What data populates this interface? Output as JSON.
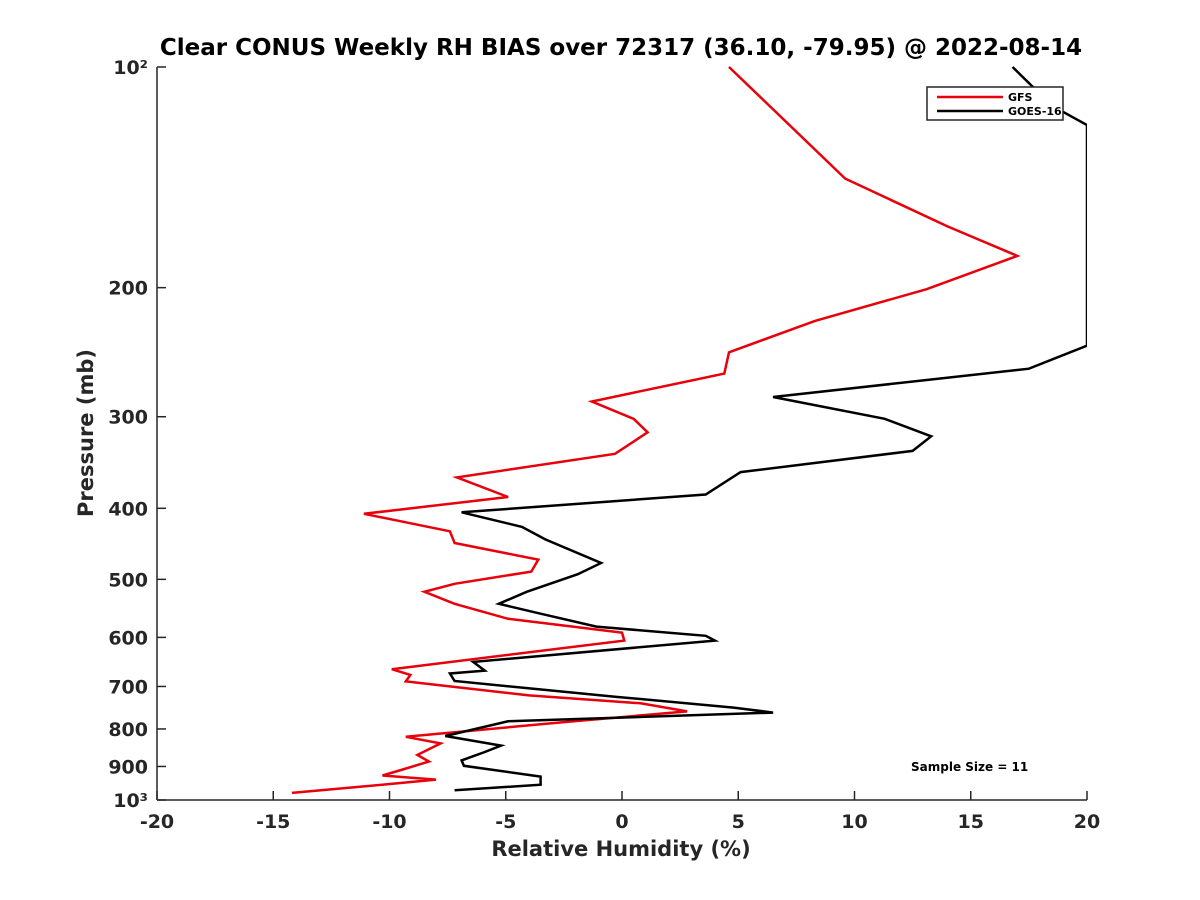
{
  "chart_data": {
    "type": "line",
    "title": "Clear CONUS Weekly RH BIAS over 72317 (36.10, -79.95) @ 2022-08-14",
    "xlabel": "Relative Humidity (%)",
    "ylabel": "Pressure (mb)",
    "xlim": [
      -20,
      20
    ],
    "ylim": [
      100,
      1000
    ],
    "y_scale": "log",
    "y_reversed": true,
    "x_ticks": [
      -20,
      -15,
      -10,
      -5,
      0,
      5,
      10,
      15,
      20
    ],
    "x_tick_labels": [
      "-20",
      "-15",
      "-10",
      "-5",
      "0",
      "5",
      "10",
      "15",
      "20"
    ],
    "y_ticks": [
      100,
      200,
      300,
      400,
      500,
      600,
      700,
      800,
      900,
      1000
    ],
    "y_tick_labels": [
      "10²",
      "200",
      "300",
      "400",
      "500",
      "600",
      "700",
      "800",
      "900",
      "10³"
    ],
    "grid": false,
    "legend_position": "top-right",
    "annotation": "Sample Size = 11",
    "series": [
      {
        "name": "GFS",
        "color": "#e8000b",
        "points": [
          [
            4.6,
            100
          ],
          [
            9.6,
            142
          ],
          [
            14,
            165
          ],
          [
            17,
            181
          ],
          [
            13.1,
            201
          ],
          [
            8.3,
            222
          ],
          [
            4.6,
            245
          ],
          [
            4.4,
            262
          ],
          [
            -1.3,
            286
          ],
          [
            0.5,
            302
          ],
          [
            1.1,
            315
          ],
          [
            -0.3,
            337
          ],
          [
            -7.1,
            363
          ],
          [
            -4.9,
            386
          ],
          [
            -11.1,
            407
          ],
          [
            -7.4,
            430
          ],
          [
            -7.2,
            446
          ],
          [
            -3.6,
            470
          ],
          [
            -3.9,
            488
          ],
          [
            -7.2,
            507
          ],
          [
            -8.5,
            520
          ],
          [
            -7.2,
            540
          ],
          [
            -4.9,
            566
          ],
          [
            0,
            591
          ],
          [
            0.1,
            606
          ],
          [
            -9.9,
            663
          ],
          [
            -9.1,
            675
          ],
          [
            -9.3,
            689
          ],
          [
            -4,
            720
          ],
          [
            0.8,
            738
          ],
          [
            2.8,
            757
          ],
          [
            -2.5,
            783
          ],
          [
            -9.3,
            820
          ],
          [
            -7.8,
            837
          ],
          [
            -8.8,
            868
          ],
          [
            -8.3,
            886
          ],
          [
            -9.5,
            910
          ],
          [
            -10.3,
            926
          ],
          [
            -8,
            938
          ],
          [
            -10.1,
            952
          ],
          [
            -14.2,
            978
          ]
        ]
      },
      {
        "name": "GOES-16",
        "color": "#000000",
        "points": [
          [
            16.8,
            100
          ],
          [
            18.5,
            113
          ],
          [
            20,
            120
          ],
          [
            20,
            240
          ],
          [
            17.5,
            258
          ],
          [
            6.5,
            282
          ],
          [
            11.3,
            302
          ],
          [
            13.3,
            319
          ],
          [
            12.5,
            334
          ],
          [
            5.1,
            357
          ],
          [
            3.6,
            383
          ],
          [
            -6.9,
            405
          ],
          [
            -4.3,
            424
          ],
          [
            -3.3,
            441
          ],
          [
            -0.9,
            475
          ],
          [
            -1.9,
            492
          ],
          [
            -4.1,
            520
          ],
          [
            -5.3,
            540
          ],
          [
            -3.5,
            557
          ],
          [
            -1.1,
            580
          ],
          [
            3.6,
            597
          ],
          [
            4,
            606
          ],
          [
            -6.4,
            648
          ],
          [
            -5.9,
            666
          ],
          [
            -7.4,
            672
          ],
          [
            -7.2,
            688
          ],
          [
            -0.3,
            723
          ],
          [
            4.8,
            748
          ],
          [
            6.5,
            760
          ],
          [
            -4.9,
            781
          ],
          [
            -7.6,
            818
          ],
          [
            -5.2,
            843
          ],
          [
            -5.9,
            860
          ],
          [
            -6.9,
            883
          ],
          [
            -6.8,
            898
          ],
          [
            -3.5,
            929
          ],
          [
            -3.5,
            953
          ],
          [
            -7.2,
            970
          ]
        ]
      }
    ]
  }
}
